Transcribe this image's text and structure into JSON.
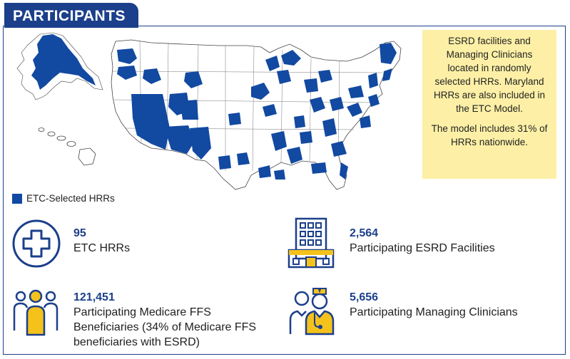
{
  "header": {
    "title": "PARTICIPANTS"
  },
  "info_box": {
    "paragraph1": "ESRD facilities and Managing Clinicians located in randomly selected HRRs. Maryland HRRs are also included in the ETC Model.",
    "paragraph2": "The model includes 31% of HRRs nationwide."
  },
  "legend": {
    "label": "ETC-Selected HRRs",
    "color": "#1249a1"
  },
  "stats": [
    {
      "value": "95",
      "label": "ETC HRRs",
      "icon": "medical-cross-icon"
    },
    {
      "value": "2,564",
      "label": "Participating ESRD Facilities",
      "icon": "hospital-building-icon"
    },
    {
      "value": "121,451",
      "label": "Participating Medicare FFS Beneficiaries (34% of Medicare FFS beneficiaries with ESRD)",
      "icon": "people-group-icon"
    },
    {
      "value": "5,656",
      "label": "Participating Managing Clinicians",
      "icon": "doctors-icon"
    }
  ],
  "colors": {
    "brand_blue": "#1b3f8b",
    "map_fill": "#1249a1",
    "accent_yellow": "#f4c21b",
    "box_yellow": "#fdf0a6"
  }
}
